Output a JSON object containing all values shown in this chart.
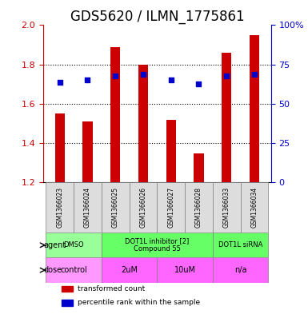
{
  "title": "GDS5620 / ILMN_1775861",
  "samples": [
    "GSM1366023",
    "GSM1366024",
    "GSM1366025",
    "GSM1366026",
    "GSM1366027",
    "GSM1366028",
    "GSM1366033",
    "GSM1366034"
  ],
  "bar_values": [
    1.55,
    1.51,
    1.89,
    1.8,
    1.52,
    1.35,
    1.86,
    1.95
  ],
  "dot_values": [
    1.71,
    1.72,
    1.74,
    1.75,
    1.72,
    1.7,
    1.74,
    1.75
  ],
  "bar_bottom": 1.2,
  "ylim": [
    1.2,
    2.0
  ],
  "y2lim": [
    0,
    100
  ],
  "yticks": [
    1.2,
    1.4,
    1.6,
    1.8,
    2.0
  ],
  "y2ticks": [
    0,
    25,
    50,
    75,
    100
  ],
  "y2ticklabels": [
    "0",
    "25",
    "50",
    "75",
    "100%"
  ],
  "bar_color": "#cc0000",
  "dot_color": "#0000cc",
  "agent_groups": [
    {
      "label": "DMSO",
      "cols": [
        0,
        1
      ],
      "color": "#99ff99"
    },
    {
      "label": "DOT1L inhibitor [2]\nCompound 55",
      "cols": [
        2,
        3,
        4,
        5
      ],
      "color": "#66ff66"
    },
    {
      "label": "DOT1L siRNA",
      "cols": [
        6,
        7
      ],
      "color": "#66ff66"
    }
  ],
  "dose_groups": [
    {
      "label": "control",
      "cols": [
        0,
        1
      ],
      "color": "#ff99ff"
    },
    {
      "label": "2uM",
      "cols": [
        2,
        3
      ],
      "color": "#ff66ff"
    },
    {
      "label": "10uM",
      "cols": [
        4,
        5
      ],
      "color": "#ff66ff"
    },
    {
      "label": "n/a",
      "cols": [
        6,
        7
      ],
      "color": "#ff66ff"
    }
  ],
  "legend_items": [
    {
      "label": "transformed count",
      "color": "#cc0000"
    },
    {
      "label": "percentile rank within the sample",
      "color": "#0000cc"
    }
  ],
  "agent_label": "agent",
  "dose_label": "dose",
  "background_color": "#ffffff",
  "grid_color": "#000000",
  "title_fontsize": 12,
  "tick_fontsize": 8,
  "label_fontsize": 9
}
